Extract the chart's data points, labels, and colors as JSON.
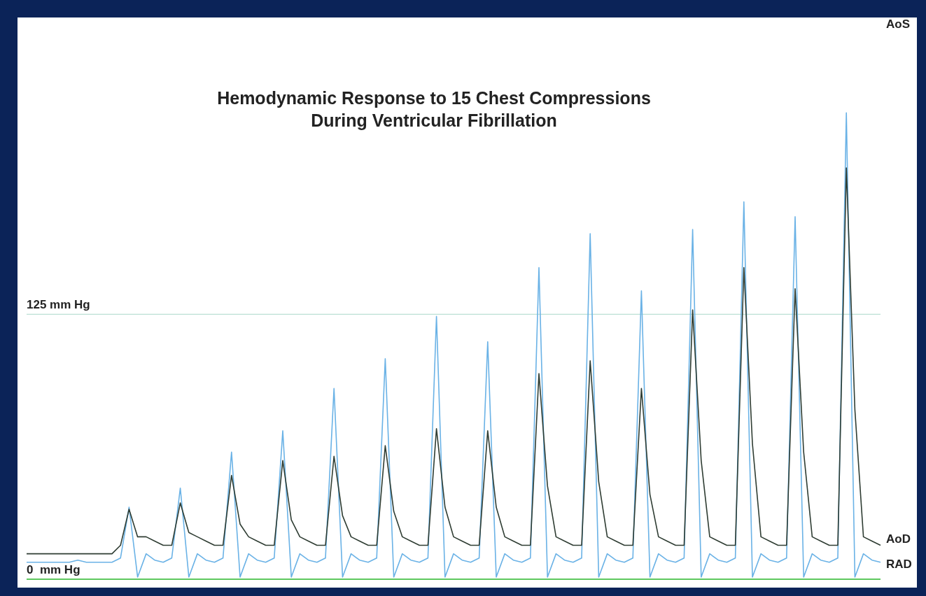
{
  "chart_data": {
    "type": "line",
    "title": "Hemodynamic Response to 15 Chest Compressions During Ventricular Fibrillation",
    "categories": [
      null,
      null,
      null,
      null,
      null,
      null,
      null,
      null,
      null,
      null,
      null,
      null,
      null,
      null,
      null,
      null,
      null,
      null,
      null,
      null,
      null,
      null,
      null,
      null,
      null,
      null,
      null,
      null,
      null,
      null,
      null,
      null,
      null,
      null,
      null,
      null,
      null,
      null,
      null,
      null,
      null,
      null,
      null,
      null,
      null,
      null,
      null,
      null,
      null,
      null,
      null,
      null,
      null,
      null,
      null,
      null,
      null,
      null,
      null,
      null,
      null,
      null,
      null,
      null,
      null,
      null,
      null,
      null,
      null,
      null,
      null,
      null,
      null,
      null,
      null,
      null,
      null,
      null,
      null,
      null,
      null,
      null,
      null,
      null,
      null,
      null,
      null,
      null,
      null,
      null,
      null,
      null,
      null,
      null,
      null,
      null,
      null,
      null,
      null,
      null,
      null
    ],
    "series": [
      {
        "name": "AoD",
        "color": "#2f3d33",
        "values": [
          12,
          12,
          12,
          12,
          12,
          12,
          12,
          12,
          12,
          12,
          12,
          16,
          33,
          20,
          20,
          18,
          16,
          16,
          36,
          22,
          20,
          18,
          16,
          16,
          49,
          26,
          20,
          18,
          16,
          16,
          56,
          28,
          20,
          18,
          16,
          16,
          58,
          30,
          20,
          18,
          16,
          16,
          63,
          32,
          20,
          18,
          16,
          16,
          71,
          34,
          20,
          18,
          16,
          16,
          70,
          34,
          20,
          18,
          16,
          16,
          97,
          44,
          20,
          18,
          16,
          16,
          103,
          46,
          20,
          18,
          16,
          16,
          90,
          40,
          20,
          18,
          16,
          16,
          127,
          56,
          20,
          18,
          16,
          16,
          147,
          64,
          20,
          18,
          16,
          16,
          137,
          60,
          20,
          18,
          16,
          16,
          194,
          80,
          20,
          18,
          16
        ]
      },
      {
        "name": "RAD",
        "color": "#6ab2e6",
        "values": [
          8,
          8,
          8,
          8,
          8,
          8,
          9,
          8,
          8,
          8,
          8,
          10,
          34,
          1,
          12,
          9,
          8,
          10,
          43,
          1,
          12,
          9,
          8,
          10,
          60,
          1,
          12,
          9,
          8,
          10,
          70,
          1,
          12,
          9,
          8,
          10,
          90,
          1,
          12,
          9,
          8,
          10,
          104,
          1,
          12,
          9,
          8,
          10,
          124,
          1,
          12,
          9,
          8,
          10,
          112,
          1,
          12,
          9,
          8,
          10,
          147,
          1,
          12,
          9,
          8,
          10,
          163,
          1,
          12,
          9,
          8,
          10,
          136,
          1,
          12,
          9,
          8,
          10,
          165,
          1,
          12,
          9,
          8,
          10,
          178,
          1,
          12,
          9,
          8,
          10,
          171,
          1,
          12,
          9,
          8,
          10,
          220,
          1,
          12,
          9,
          8
        ]
      }
    ],
    "ylim": [
      0,
      265
    ],
    "ref_lines": [
      {
        "axis": "y",
        "value": 125,
        "label": "125 mm Hg",
        "color": "#a8d8c8"
      },
      {
        "axis": "y",
        "value": 0,
        "label": "0  mm Hg",
        "color": "#5ec85e"
      }
    ],
    "annotations": [
      "AoS"
    ],
    "grid": false,
    "legend": false,
    "marker": "none",
    "line_style": "solid"
  }
}
